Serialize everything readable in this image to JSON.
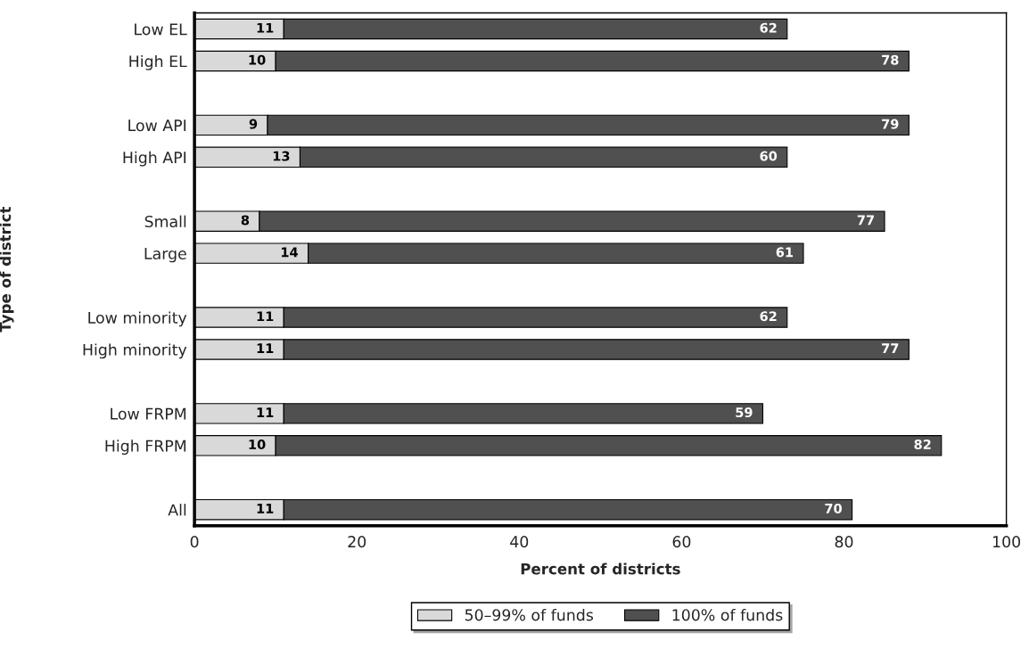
{
  "chart_data": {
    "type": "bar",
    "orientation": "horizontal",
    "stacked": true,
    "data_labels": true,
    "xlabel": "Percent of districts",
    "ylabel": "Type of district",
    "categories": [
      "Low EL",
      "High EL",
      null,
      "Low API",
      "High API",
      null,
      "Small",
      "Large",
      null,
      "Low minority",
      "High minority",
      null,
      "Low FRPM",
      "High FRPM",
      null,
      "All"
    ],
    "series": [
      {
        "name": "50–99% of funds",
        "color": "#d9d9d9",
        "values": [
          11,
          10,
          null,
          9,
          13,
          null,
          8,
          14,
          null,
          11,
          11,
          null,
          11,
          10,
          null,
          11
        ]
      },
      {
        "name": "100% of funds",
        "color": "#505050",
        "values": [
          62,
          78,
          null,
          79,
          60,
          null,
          77,
          61,
          null,
          62,
          77,
          null,
          59,
          82,
          null,
          70
        ]
      }
    ],
    "xlim": [
      0,
      100
    ],
    "xticks": [
      0,
      20,
      40,
      60,
      80,
      100
    ],
    "grid": false,
    "legend": "bottom"
  }
}
